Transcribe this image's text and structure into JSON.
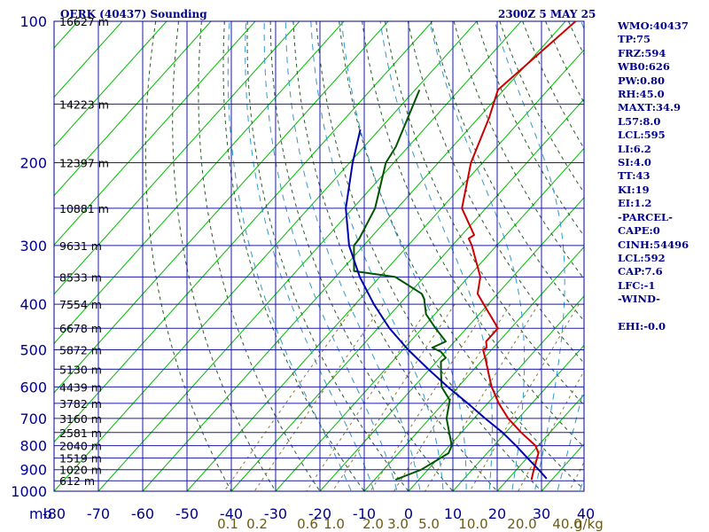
{
  "header": {
    "station": "OERK (40437) Sounding",
    "time": "2300Z  5 MAY 25"
  },
  "indices": [
    {
      "label": "WMO:40437"
    },
    {
      "label": "TP:75"
    },
    {
      "label": "FRZ:594"
    },
    {
      "label": "WB0:626"
    },
    {
      "label": "PW:0.80"
    },
    {
      "label": "RH:45.0"
    },
    {
      "label": "MAXT:34.9"
    },
    {
      "label": "L57:8.0"
    },
    {
      "label": "LCL:595"
    },
    {
      "label": "LI:6.2"
    },
    {
      "label": "SI:4.0"
    },
    {
      "label": "TT:43"
    },
    {
      "label": "KI:19"
    },
    {
      "label": "EI:1.2"
    },
    {
      "label": "-PARCEL-"
    },
    {
      "label": "CAPE:0"
    },
    {
      "label": "CINH:54496"
    },
    {
      "label": "LCL:592"
    },
    {
      "label": "CAP:7.6"
    },
    {
      "label": "LFC:-1"
    },
    {
      "label": "-WIND-"
    },
    {
      "label": ""
    },
    {
      "label": "EHI:-0.0"
    }
  ],
  "colors": {
    "frame": "#00008b",
    "isobar": "#1a1aa6",
    "isotherm": "#00bb00",
    "temperature": "#cc0000",
    "dewpoint": "#005500",
    "parcel": "#0000aa",
    "dry_adiabat": "#2a5a2a",
    "moist_adiabat": "#3399cc",
    "mixing_ratio": "#8b7a2a"
  },
  "chart_data": {
    "type": "line",
    "title": "OERK (40437) Sounding",
    "xlabel": "",
    "ylabel": "mb",
    "x_axis_unit": "°C",
    "ylim": [
      1000,
      100
    ],
    "xlim": [
      -80,
      40
    ],
    "pressure_ticks": [
      "100",
      "200",
      "300",
      "400",
      "500",
      "600",
      "700",
      "800",
      "900",
      "1000"
    ],
    "pressure_label": "mb",
    "temp_ticks": [
      "-80",
      "-70",
      "-60",
      "-50",
      "-40",
      "-30",
      "-20",
      "-10",
      "0",
      "10",
      "20",
      "30",
      "40"
    ],
    "mixing_ratio_ticks": [
      "0.1",
      "0.2",
      "0.6",
      "1.0",
      "2.0",
      "3.0",
      "5.0",
      "10.0",
      "20.0",
      "40.0"
    ],
    "mixing_ratio_unit": "g/kg",
    "height_labels": [
      {
        "p": 100,
        "label": "16627 m"
      },
      {
        "p": 150,
        "label": "14223 m"
      },
      {
        "p": 200,
        "label": "12397 m"
      },
      {
        "p": 250,
        "label": "10881 m"
      },
      {
        "p": 300,
        "label": "9631 m"
      },
      {
        "p": 350,
        "label": "8533 m"
      },
      {
        "p": 400,
        "label": "7554 m"
      },
      {
        "p": 450,
        "label": "6678 m"
      },
      {
        "p": 500,
        "label": "5872 m"
      },
      {
        "p": 550,
        "label": "5130 m"
      },
      {
        "p": 600,
        "label": "4439 m"
      },
      {
        "p": 650,
        "label": "3782 m"
      },
      {
        "p": 700,
        "label": "3160 m"
      },
      {
        "p": 750,
        "label": "2581 m"
      },
      {
        "p": 800,
        "label": "2040 m"
      },
      {
        "p": 850,
        "label": "1519 m"
      },
      {
        "p": 900,
        "label": "1020 m"
      },
      {
        "p": 950,
        "label": "612 m"
      }
    ],
    "series": [
      {
        "key": "temperature",
        "points": [
          [
            100,
            -57.7
          ],
          [
            140,
            -61.3
          ],
          [
            160,
            -57.7
          ],
          [
            200,
            -52.6
          ],
          [
            250,
            -45.4
          ],
          [
            285,
            -37.2
          ],
          [
            290,
            -37.7
          ],
          [
            300,
            -35.6
          ],
          [
            350,
            -27.3
          ],
          [
            380,
            -24.5
          ],
          [
            400,
            -21.0
          ],
          [
            450,
            -12.9
          ],
          [
            480,
            -12.9
          ],
          [
            495,
            -11.5
          ],
          [
            500,
            -11.9
          ],
          [
            530,
            -8.8
          ],
          [
            560,
            -6.0
          ],
          [
            600,
            -2.4
          ],
          [
            650,
            2.5
          ],
          [
            700,
            7.7
          ],
          [
            750,
            13.5
          ],
          [
            800,
            19.4
          ],
          [
            830,
            21.6
          ],
          [
            900,
            23.9
          ],
          [
            945,
            25.4
          ]
        ]
      },
      {
        "key": "dewpoint",
        "points": [
          [
            140,
            -79.0
          ],
          [
            185,
            -72.8
          ],
          [
            200,
            -71.8
          ],
          [
            250,
            -65.0
          ],
          [
            290,
            -62.4
          ],
          [
            300,
            -62.2
          ],
          [
            340,
            -57.0
          ],
          [
            350,
            -46.5
          ],
          [
            380,
            -37.1
          ],
          [
            390,
            -35.5
          ],
          [
            420,
            -32.0
          ],
          [
            450,
            -27.0
          ],
          [
            480,
            -22.0
          ],
          [
            495,
            -23.8
          ],
          [
            505,
            -21.0
          ],
          [
            520,
            -18.7
          ],
          [
            530,
            -19.0
          ],
          [
            560,
            -16.7
          ],
          [
            600,
            -13.7
          ],
          [
            640,
            -9.2
          ],
          [
            700,
            -6.2
          ],
          [
            800,
            0.5
          ],
          [
            830,
            1.3
          ],
          [
            900,
            -1.5
          ],
          [
            945,
            -5.3
          ]
        ]
      },
      {
        "key": "parcel",
        "points": [
          [
            170,
            -84.3
          ],
          [
            200,
            -79.3
          ],
          [
            250,
            -71.6
          ],
          [
            300,
            -63.3
          ],
          [
            350,
            -54.5
          ],
          [
            400,
            -45.8
          ],
          [
            450,
            -37.4
          ],
          [
            500,
            -28.8
          ],
          [
            550,
            -20.3
          ],
          [
            600,
            -12.3
          ],
          [
            650,
            -4.5
          ],
          [
            700,
            2.5
          ],
          [
            750,
            9.3
          ],
          [
            800,
            15.0
          ],
          [
            850,
            20.1
          ],
          [
            900,
            25.0
          ],
          [
            940,
            28.6
          ]
        ]
      }
    ]
  }
}
